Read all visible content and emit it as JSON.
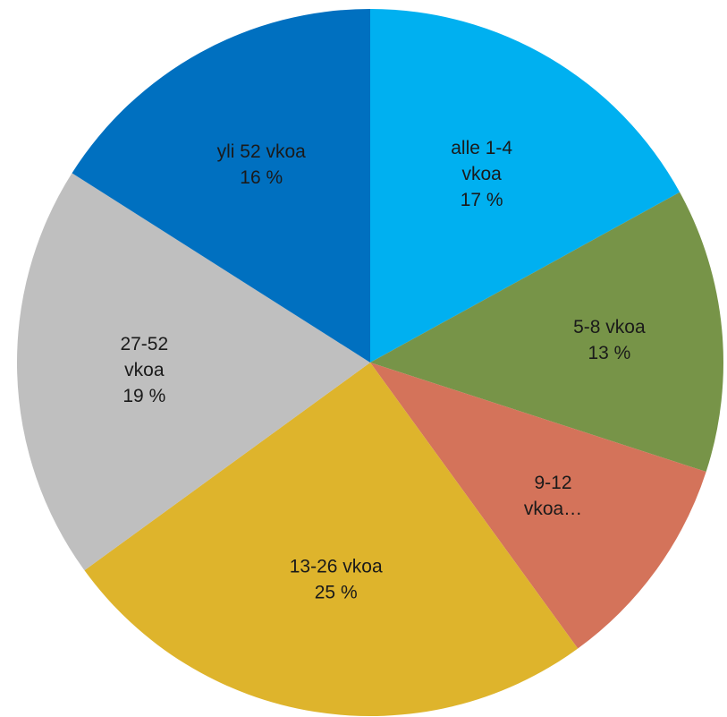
{
  "chart_data": {
    "type": "pie",
    "title": "",
    "start_angle_deg": 0,
    "direction": "clockwise",
    "slices": [
      {
        "category": "alle 1-4 vkoa",
        "label_lines": [
          "alle 1-4",
          "vkoa",
          "17 %"
        ],
        "percent_label": "17 %",
        "value": 17,
        "color": "#00B0F0"
      },
      {
        "category": "5-8 vkoa",
        "label_lines": [
          "5-8 vkoa",
          "13 %"
        ],
        "percent_label": "13 %",
        "value": 13,
        "color": "#779448"
      },
      {
        "category": "9-12 vkoa",
        "label_lines": [
          "9-12",
          "vkoa…"
        ],
        "percent_label": "",
        "value": 10,
        "color": "#D4735A"
      },
      {
        "category": "13-26 vkoa",
        "label_lines": [
          "13-26 vkoa",
          "25 %"
        ],
        "percent_label": "25 %",
        "value": 25,
        "color": "#DEB42C"
      },
      {
        "category": "27-52 vkoa",
        "label_lines": [
          "27-52",
          "vkoa",
          "19 %"
        ],
        "percent_label": "19 %",
        "value": 19,
        "color": "#BFBFBF"
      },
      {
        "category": "yli 52 vkoa",
        "label_lines": [
          "yli 52 vkoa",
          "16 %"
        ],
        "percent_label": "16 %",
        "value": 16,
        "color": "#0070C0"
      }
    ]
  }
}
